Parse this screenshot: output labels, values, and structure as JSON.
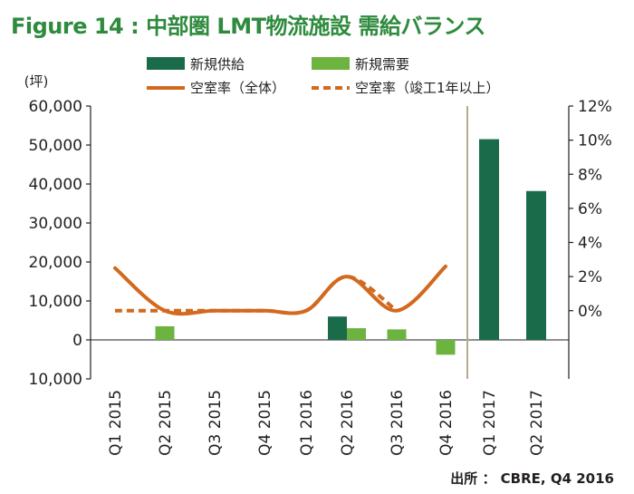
{
  "figure_title": "Figure 14 : 中部圏 LMT物流施設 需給バランス",
  "source_note": "出所 ： CBRE, Q4 2016",
  "colors": {
    "title": "#2e8b3d",
    "supply": "#1a6b4a",
    "demand": "#6cb33f",
    "vacancy": "#d2691e",
    "divider": "#b4aa8c",
    "axis": "#231f20"
  },
  "chart_data": {
    "type": "bar",
    "unit_label": "(坪)",
    "categories": [
      "Q1 2015",
      "Q2 2015",
      "Q3 2015",
      "Q4 2015",
      "Q1 2016",
      "Q2 2016",
      "Q3 2016",
      "Q4 2016",
      "Q1 2017",
      "Q2 2017"
    ],
    "ylim": [
      -10000,
      60000
    ],
    "yticks": [
      -10000,
      0,
      10000,
      20000,
      30000,
      40000,
      50000,
      60000
    ],
    "ytick_labels": [
      "10,000",
      "0",
      "10,000",
      "20,000",
      "30,000",
      "40,000",
      "50,000",
      "60,000"
    ],
    "y2lim": [
      -0.04,
      0.12
    ],
    "y2ticks": [
      0,
      0.02,
      0.04,
      0.06,
      0.08,
      0.1,
      0.12
    ],
    "y2tick_labels": [
      "0%",
      "2%",
      "4%",
      "6%",
      "8%",
      "10%",
      "12%"
    ],
    "series": [
      {
        "name": "新規供給",
        "kind": "bar",
        "axis": "left",
        "values": [
          0,
          0,
          0,
          0,
          0,
          6000,
          0,
          0,
          51500,
          38200
        ]
      },
      {
        "name": "新規需要",
        "kind": "bar",
        "axis": "left",
        "values": [
          0,
          3500,
          0,
          0,
          0,
          3000,
          2700,
          -3800,
          0,
          0
        ]
      },
      {
        "name": "空室率（全体）",
        "kind": "line",
        "style": "solid",
        "axis": "right",
        "values": [
          0.025,
          0.0,
          0.0,
          0.0,
          0.0,
          0.02,
          0.0,
          0.026,
          null,
          null
        ]
      },
      {
        "name": "空室率（竣工1年以上）",
        "kind": "line",
        "style": "dashed",
        "axis": "right",
        "values": [
          0.0,
          0.0,
          0.0,
          0.0,
          0.0,
          0.02,
          0.0,
          null,
          null,
          null
        ]
      }
    ],
    "forecast_divider_after": "Q4 2016",
    "legend_position": "top"
  }
}
